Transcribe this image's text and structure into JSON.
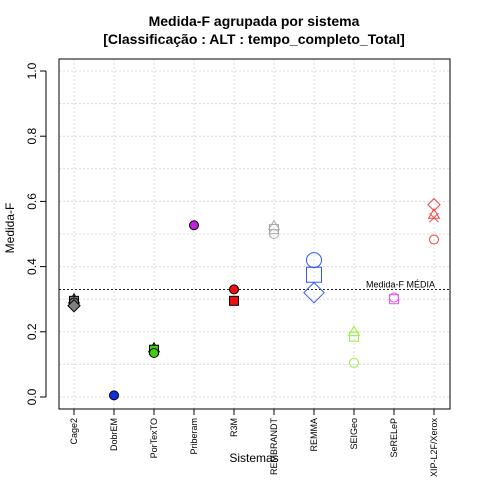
{
  "chart_data": {
    "type": "scatter",
    "title": "Medida-F agrupada por sistema",
    "subtitle": "[Classificação : ALT : tempo_completo_Total]",
    "xlabel": "Sistemas",
    "ylabel": "Medida-F",
    "ylim": [
      0,
      1
    ],
    "yticks": [
      "0.0",
      "0.2",
      "0.4",
      "0.6",
      "0.8",
      "1.0"
    ],
    "grid": true,
    "categories": [
      "Cage2",
      "DobrEM",
      "PorTexTO",
      "Priberam",
      "R3M",
      "REMBRANDT",
      "REMMA",
      "SEIGeo",
      "SeRELeP",
      "XIP-L2F/Xerox"
    ],
    "series": [
      {
        "category": "Cage2",
        "color": "#7f7f7f",
        "points": [
          {
            "y": 0.3,
            "shape": "triangle",
            "filled": true,
            "size": 1
          },
          {
            "y": 0.295,
            "shape": "square",
            "filled": true,
            "size": 1
          },
          {
            "y": 0.29,
            "shape": "circle",
            "filled": true,
            "size": 1
          },
          {
            "y": 0.28,
            "shape": "diamond",
            "filled": true,
            "size": 1
          }
        ]
      },
      {
        "category": "DobrEM",
        "color": "#1030e0",
        "points": [
          {
            "y": 0.005,
            "shape": "circle",
            "filled": true,
            "size": 1
          }
        ]
      },
      {
        "category": "PorTexTO",
        "color": "#40d010",
        "points": [
          {
            "y": 0.15,
            "shape": "triangle",
            "filled": true,
            "size": 1
          },
          {
            "y": 0.145,
            "shape": "square",
            "filled": true,
            "size": 1
          },
          {
            "y": 0.135,
            "shape": "circle",
            "filled": true,
            "size": 1
          }
        ]
      },
      {
        "category": "Priberam",
        "color": "#c020e0",
        "points": [
          {
            "y": 0.527,
            "shape": "circle",
            "filled": true,
            "size": 1
          }
        ]
      },
      {
        "category": "R3M",
        "color": "#ee1111",
        "points": [
          {
            "y": 0.33,
            "shape": "circle",
            "filled": true,
            "size": 1
          },
          {
            "y": 0.295,
            "shape": "square",
            "filled": true,
            "size": 1
          }
        ]
      },
      {
        "category": "REMBRANDT",
        "color": "#a8a8a8",
        "points": [
          {
            "y": 0.525,
            "shape": "triangle",
            "filled": false,
            "size": 1
          },
          {
            "y": 0.515,
            "shape": "square",
            "filled": false,
            "size": 1
          },
          {
            "y": 0.5,
            "shape": "circle",
            "filled": false,
            "size": 1
          }
        ]
      },
      {
        "category": "REMMA",
        "color": "#3355ff",
        "points": [
          {
            "y": 0.42,
            "shape": "circle",
            "filled": false,
            "size": 2
          },
          {
            "y": 0.375,
            "shape": "square",
            "filled": false,
            "size": 2
          },
          {
            "y": 0.32,
            "shape": "diamond",
            "filled": false,
            "size": 2
          }
        ]
      },
      {
        "category": "SEIGeo",
        "color": "#99ee44",
        "points": [
          {
            "y": 0.2,
            "shape": "triangle",
            "filled": false,
            "size": 1
          },
          {
            "y": 0.185,
            "shape": "square",
            "filled": false,
            "size": 1
          },
          {
            "y": 0.105,
            "shape": "circle",
            "filled": false,
            "size": 1
          }
        ]
      },
      {
        "category": "SeRELeP",
        "color": "#ee55ee",
        "points": [
          {
            "y": 0.305,
            "shape": "circle",
            "filled": false,
            "size": 1
          },
          {
            "y": 0.3,
            "shape": "square",
            "filled": false,
            "size": 1
          }
        ]
      },
      {
        "category": "XIP-L2F/Xerox",
        "color": "#ee4444",
        "points": [
          {
            "y": 0.59,
            "shape": "diamond",
            "filled": false,
            "size": 1
          },
          {
            "y": 0.56,
            "shape": "triangle",
            "filled": false,
            "size": 1
          },
          {
            "y": 0.55,
            "shape": "cross",
            "filled": false,
            "size": 1
          },
          {
            "y": 0.483,
            "shape": "circle",
            "filled": false,
            "size": 1
          }
        ]
      }
    ],
    "reference_line": {
      "y": 0.33,
      "label": "Medida-F MÉDIA",
      "style": "dotted"
    }
  }
}
